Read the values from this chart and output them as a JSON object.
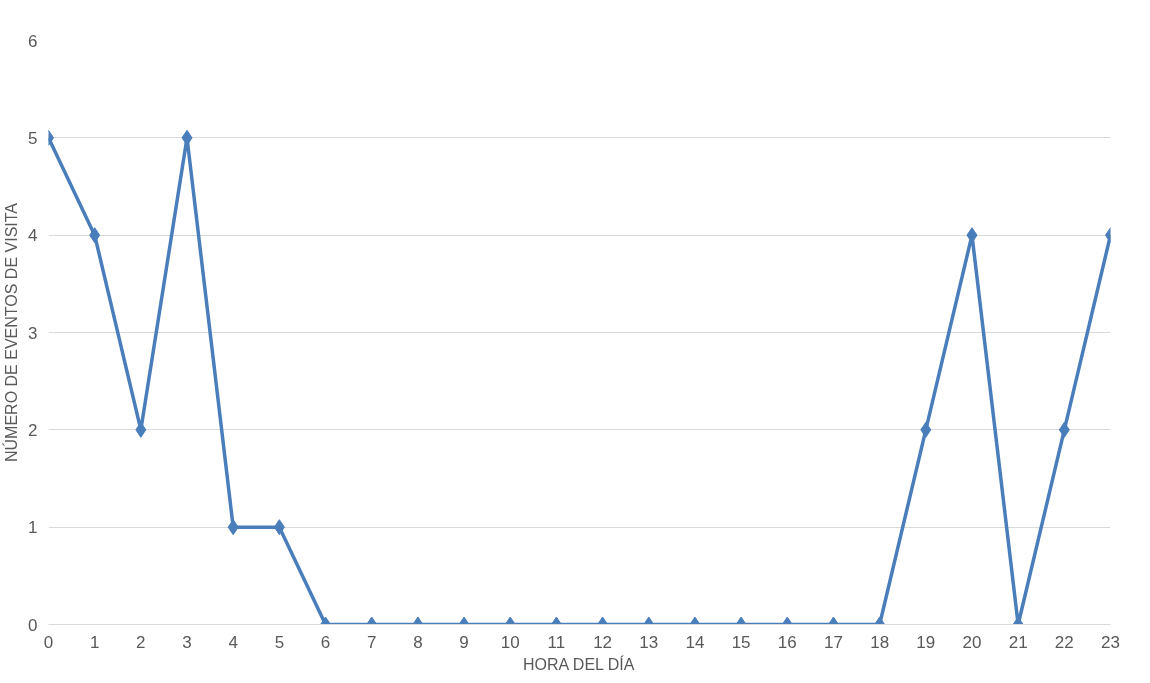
{
  "chart_data": {
    "type": "line",
    "xlabel": "HORA DEL DÍA",
    "ylabel": "NÚMERO DE EVENTOS DE VISITA",
    "x": [
      0,
      1,
      2,
      3,
      4,
      5,
      6,
      7,
      8,
      9,
      10,
      11,
      12,
      13,
      14,
      15,
      16,
      17,
      18,
      19,
      20,
      21,
      22,
      23
    ],
    "series": [
      {
        "color": "#4a7ebb",
        "values": [
          5,
          4,
          2,
          5,
          1,
          1,
          0,
          0,
          0,
          0,
          0,
          0,
          0,
          0,
          0,
          0,
          0,
          0,
          0,
          2,
          4,
          0,
          2,
          4
        ]
      }
    ],
    "xlim": [
      0,
      23
    ],
    "xticks": [
      0,
      1,
      2,
      3,
      4,
      5,
      6,
      7,
      8,
      9,
      10,
      11,
      12,
      13,
      14,
      15,
      16,
      17,
      18,
      19,
      20,
      21,
      22,
      23
    ],
    "ylim": [
      0,
      6
    ],
    "yticks": [
      0,
      1,
      2,
      3,
      4,
      5,
      6
    ],
    "grid": "y",
    "marker": "diamond",
    "line_style": "solid"
  }
}
